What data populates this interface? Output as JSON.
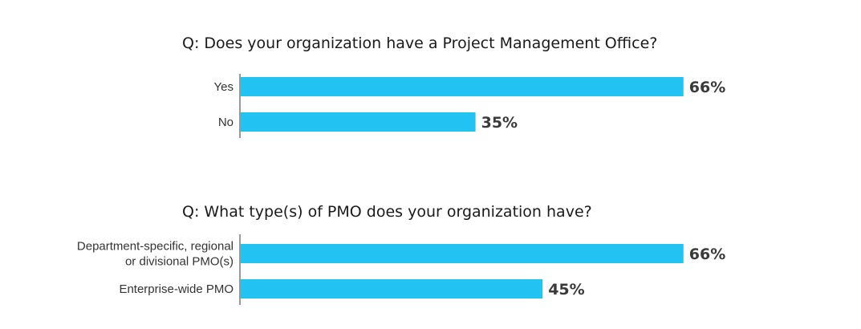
{
  "colors": {
    "bar": "#22c3f3",
    "text": "#333333",
    "value_text": "#3a3a3a",
    "axis": "#333333"
  },
  "chart_data": [
    {
      "type": "bar",
      "orientation": "horizontal",
      "title": "Q: Does your organization have a Project Management Office?",
      "categories": [
        "Yes",
        "No"
      ],
      "values": [
        66,
        35
      ],
      "value_labels": [
        "66%",
        "35%"
      ],
      "unit": "%",
      "xlim": [
        0,
        100
      ],
      "grid": false,
      "legend": "none"
    },
    {
      "type": "bar",
      "orientation": "horizontal",
      "title": "Q: What type(s) of PMO does your organization have?",
      "categories": [
        [
          "Department-specific, regional",
          "or divisional PMO(s)"
        ],
        [
          "Enterprise-wide PMO"
        ]
      ],
      "values": [
        66,
        45
      ],
      "value_labels": [
        "66%",
        "45%"
      ],
      "unit": "%",
      "xlim": [
        0,
        100
      ],
      "grid": false,
      "legend": "none"
    }
  ]
}
